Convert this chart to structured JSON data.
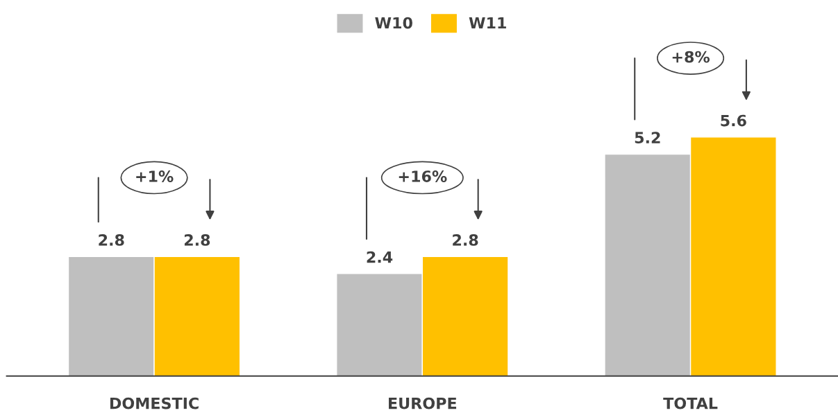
{
  "chart_data": {
    "type": "bar",
    "categories": [
      "DOMESTIC",
      "EUROPE",
      "TOTAL"
    ],
    "series": [
      {
        "name": "W10",
        "color": "#bfbfbf",
        "values": [
          2.8,
          2.4,
          5.2
        ]
      },
      {
        "name": "W11",
        "color": "#ffc000",
        "values": [
          2.8,
          2.8,
          5.6
        ]
      }
    ],
    "data_labels": true,
    "annotations": [
      "+1%",
      "+16%",
      "+8%"
    ],
    "legend": "top",
    "grid": false
  }
}
